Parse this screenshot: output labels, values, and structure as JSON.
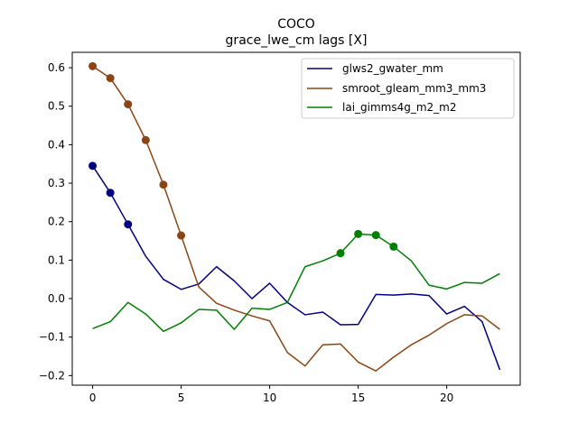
{
  "chart_data": {
    "type": "line",
    "title": "COCO",
    "subtitle": "grace_lwe_cm lags [X]",
    "xlabel": "",
    "ylabel": "",
    "xlim": [
      -1.15,
      24.15
    ],
    "ylim": [
      -0.225,
      0.64
    ],
    "xticks": [
      0,
      5,
      10,
      15,
      20
    ],
    "xtick_labels": [
      "0",
      "5",
      "10",
      "15",
      "20"
    ],
    "yticks": [
      -0.2,
      -0.1,
      0.0,
      0.1,
      0.2,
      0.3,
      0.4,
      0.5,
      0.6
    ],
    "ytick_labels": [
      "−0.2",
      "−0.1",
      "0.0",
      "0.1",
      "0.2",
      "0.3",
      "0.4",
      "0.5",
      "0.6"
    ],
    "grid": false,
    "legend_position": "top-right",
    "x": [
      0,
      1,
      2,
      3,
      4,
      5,
      6,
      7,
      8,
      9,
      10,
      11,
      12,
      13,
      14,
      15,
      16,
      17,
      18,
      19,
      20,
      21,
      22,
      23
    ],
    "series": [
      {
        "name": "glws2_gwater_mm",
        "color": "#000080",
        "values": [
          0.345,
          0.275,
          0.193,
          0.11,
          0.05,
          0.024,
          0.038,
          0.083,
          0.046,
          0.0,
          0.04,
          -0.01,
          -0.042,
          -0.035,
          -0.068,
          -0.067,
          0.011,
          0.009,
          0.012,
          0.008,
          -0.04,
          -0.02,
          -0.06,
          -0.185
        ],
        "marker_indices": [
          0,
          1,
          2
        ]
      },
      {
        "name": "smroot_gleam_mm3_mm3",
        "color": "#8B4513",
        "values": [
          0.604,
          0.573,
          0.505,
          0.412,
          0.296,
          0.164,
          0.03,
          -0.012,
          -0.03,
          -0.045,
          -0.058,
          -0.14,
          -0.175,
          -0.12,
          -0.118,
          -0.165,
          -0.188,
          -0.152,
          -0.12,
          -0.095,
          -0.065,
          -0.042,
          -0.045,
          -0.08
        ],
        "marker_indices": [
          0,
          1,
          2,
          3,
          4,
          5
        ]
      },
      {
        "name": "lai_gimms4g_m2_m2",
        "color": "#008000",
        "values": [
          -0.078,
          -0.06,
          -0.01,
          -0.04,
          -0.085,
          -0.063,
          -0.028,
          -0.03,
          -0.08,
          -0.025,
          -0.028,
          -0.01,
          0.083,
          0.098,
          0.118,
          0.168,
          0.165,
          0.135,
          0.098,
          0.035,
          0.025,
          0.042,
          0.04,
          0.065
        ],
        "marker_indices": [
          14,
          15,
          16,
          17
        ]
      }
    ]
  }
}
